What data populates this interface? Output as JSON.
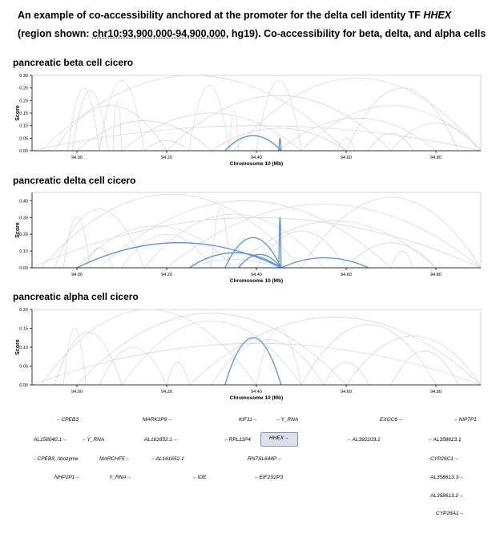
{
  "caption": {
    "part1": "An example of co-accessibility anchored at the promoter for the delta cell identity TF ",
    "gene": "HHEX",
    "part2": "(region shown: ",
    "region": "chr10:93,900,000-94,900,000",
    "part3": ", hg19). Co-accessibility for beta, delta, and alpha cells"
  },
  "chart_data": [
    {
      "type": "line",
      "title": "pancreatic beta cell cicero",
      "xlabel": "Chromosome 10 (Mb)",
      "ylabel": "Score",
      "xlim": [
        93.9,
        94.9
      ],
      "ylim": [
        0,
        0.3
      ],
      "yticks": [
        "0.00",
        "0.05",
        "0.10",
        "0.15",
        "0.20",
        "0.25",
        "0.30"
      ],
      "xticks": [
        "94.00",
        "94.20",
        "94.40",
        "94.60",
        "94.80"
      ],
      "highlight_color": "#5b8fd8",
      "background_color": "#d8d8d8",
      "highlighted_links": [
        {
          "start": 94.33,
          "end": 94.455,
          "score": 0.06
        },
        {
          "start": 94.45,
          "end": 94.455,
          "score": 0.05
        }
      ],
      "background_links": [
        {
          "start": 93.92,
          "end": 94.6,
          "score": 0.3
        },
        {
          "start": 93.95,
          "end": 94.2,
          "score": 0.18
        },
        {
          "start": 93.98,
          "end": 94.05,
          "score": 0.25
        },
        {
          "start": 93.99,
          "end": 94.07,
          "score": 0.24
        },
        {
          "start": 94.0,
          "end": 94.3,
          "score": 0.12
        },
        {
          "start": 94.05,
          "end": 94.15,
          "score": 0.28
        },
        {
          "start": 94.08,
          "end": 94.1,
          "score": 0.2
        },
        {
          "start": 94.1,
          "end": 94.5,
          "score": 0.15
        },
        {
          "start": 94.2,
          "end": 94.7,
          "score": 0.22
        },
        {
          "start": 94.25,
          "end": 94.34,
          "score": 0.26
        },
        {
          "start": 94.3,
          "end": 94.6,
          "score": 0.09
        },
        {
          "start": 94.34,
          "end": 94.36,
          "score": 0.16
        },
        {
          "start": 94.35,
          "end": 94.9,
          "score": 0.29
        },
        {
          "start": 94.4,
          "end": 94.5,
          "score": 0.28
        },
        {
          "start": 94.45,
          "end": 94.8,
          "score": 0.13
        },
        {
          "start": 94.5,
          "end": 94.9,
          "score": 0.18
        },
        {
          "start": 94.58,
          "end": 94.62,
          "score": 0.05
        },
        {
          "start": 94.6,
          "end": 94.85,
          "score": 0.25
        },
        {
          "start": 94.65,
          "end": 94.75,
          "score": 0.07
        },
        {
          "start": 94.7,
          "end": 94.9,
          "score": 0.11
        },
        {
          "start": 93.9,
          "end": 94.9,
          "score": 0.1
        },
        {
          "start": 94.15,
          "end": 94.25,
          "score": 0.04
        }
      ]
    },
    {
      "type": "line",
      "title": "pancreatic delta cell cicero",
      "xlabel": "Chromosome 10 (Mb)",
      "ylabel": "Score",
      "xlim": [
        93.9,
        94.9
      ],
      "ylim": [
        0,
        0.45
      ],
      "yticks": [
        "0.00",
        "0.10",
        "0.20",
        "0.30",
        "0.40"
      ],
      "xticks": [
        "94.00",
        "94.20",
        "94.40",
        "94.60",
        "94.80"
      ],
      "highlight_color": "#5b8fd8",
      "background_color": "#d8d8d8",
      "highlighted_links": [
        {
          "start": 94.0,
          "end": 94.455,
          "score": 0.15
        },
        {
          "start": 94.25,
          "end": 94.455,
          "score": 0.09
        },
        {
          "start": 94.33,
          "end": 94.455,
          "score": 0.18
        },
        {
          "start": 94.36,
          "end": 94.455,
          "score": 0.08
        },
        {
          "start": 94.45,
          "end": 94.455,
          "score": 0.3
        },
        {
          "start": 94.455,
          "end": 94.65,
          "score": 0.06
        }
      ],
      "background_links": [
        {
          "start": 93.92,
          "end": 94.5,
          "score": 0.44
        },
        {
          "start": 93.95,
          "end": 94.15,
          "score": 0.35
        },
        {
          "start": 93.97,
          "end": 94.03,
          "score": 0.3
        },
        {
          "start": 94.0,
          "end": 94.35,
          "score": 0.25
        },
        {
          "start": 94.02,
          "end": 94.08,
          "score": 0.12
        },
        {
          "start": 94.05,
          "end": 94.7,
          "score": 0.4
        },
        {
          "start": 94.1,
          "end": 94.3,
          "score": 0.2
        },
        {
          "start": 94.15,
          "end": 94.55,
          "score": 0.32
        },
        {
          "start": 94.2,
          "end": 94.9,
          "score": 0.38
        },
        {
          "start": 94.3,
          "end": 94.34,
          "score": 0.36
        },
        {
          "start": 94.35,
          "end": 94.8,
          "score": 0.28
        },
        {
          "start": 94.4,
          "end": 94.6,
          "score": 0.22
        },
        {
          "start": 94.5,
          "end": 94.9,
          "score": 0.42
        },
        {
          "start": 94.6,
          "end": 94.8,
          "score": 0.15
        },
        {
          "start": 94.7,
          "end": 94.75,
          "score": 0.1
        },
        {
          "start": 93.9,
          "end": 94.9,
          "score": 0.3
        },
        {
          "start": 94.25,
          "end": 94.45,
          "score": 0.05
        }
      ]
    },
    {
      "type": "line",
      "title": "pancreatic alpha cell cicero",
      "xlabel": "Chromosome 10 (Mb)",
      "ylabel": "Score",
      "xlim": [
        93.9,
        94.9
      ],
      "ylim": [
        0,
        0.2
      ],
      "yticks": [
        "0.00",
        "0.05",
        "0.10",
        "0.15",
        "0.20"
      ],
      "xticks": [
        "94.00",
        "94.20",
        "94.40",
        "94.60",
        "94.80"
      ],
      "highlight_color": "#5b8fd8",
      "background_color": "#d8d8d8",
      "highlighted_links": [
        {
          "start": 94.33,
          "end": 94.455,
          "score": 0.125
        }
      ],
      "background_links": [
        {
          "start": 93.92,
          "end": 94.4,
          "score": 0.2
        },
        {
          "start": 93.95,
          "end": 94.1,
          "score": 0.14
        },
        {
          "start": 93.97,
          "end": 94.02,
          "score": 0.15
        },
        {
          "start": 94.0,
          "end": 94.6,
          "score": 0.19
        },
        {
          "start": 94.05,
          "end": 94.2,
          "score": 0.1
        },
        {
          "start": 94.1,
          "end": 94.5,
          "score": 0.17
        },
        {
          "start": 94.2,
          "end": 94.25,
          "score": 0.06
        },
        {
          "start": 94.25,
          "end": 94.9,
          "score": 0.18
        },
        {
          "start": 94.3,
          "end": 94.55,
          "score": 0.12
        },
        {
          "start": 94.4,
          "end": 94.5,
          "score": 0.15
        },
        {
          "start": 94.5,
          "end": 94.8,
          "score": 0.16
        },
        {
          "start": 94.55,
          "end": 94.65,
          "score": 0.06
        },
        {
          "start": 94.6,
          "end": 94.9,
          "score": 0.13
        },
        {
          "start": 94.7,
          "end": 94.85,
          "score": 0.09
        },
        {
          "start": 93.9,
          "end": 94.9,
          "score": 0.11
        }
      ]
    }
  ],
  "genes": [
    "←CPEB3",
    "MARK2P9→",
    "KIF11→",
    "←Y_RNA",
    "EXOC6→",
    "←NIP7P1",
    "AL158040.1→",
    "←Y_RNA",
    "AL161652.1→",
    "←RPL11P4",
    "HHEX→",
    "←AL392103.1",
    "←AL358613.1",
    "←CPEB3_ribozyme",
    "MARCHF5→",
    "←AL161652.1",
    "RN7SL644P→",
    "CYP26C1→",
    "NHP2P1→",
    "Y_RNA→",
    "←IDE",
    "←EIF2S2P3",
    "AL358613.3→",
    "AL358613.2→",
    "CYP26A1→"
  ]
}
